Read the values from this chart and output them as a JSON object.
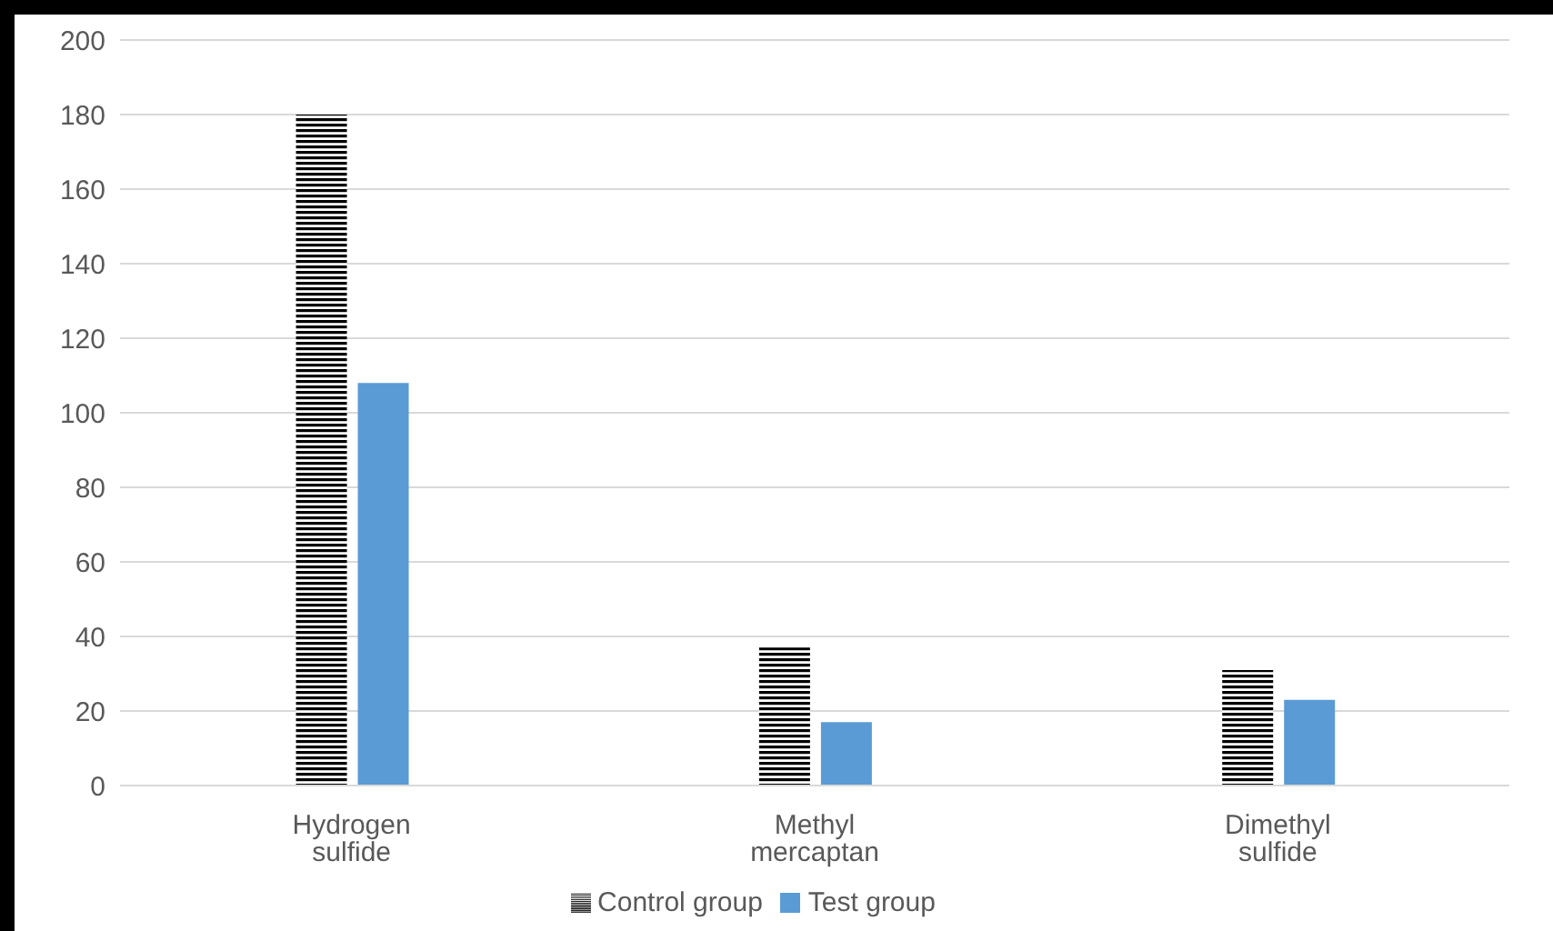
{
  "chart_data": {
    "type": "bar",
    "categories": [
      "Hydrogen sulfide",
      "Methyl mercaptan",
      "Dimethyl sulfide"
    ],
    "series": [
      {
        "name": "Control group",
        "color": "#000000",
        "values": [
          180,
          37,
          31
        ]
      },
      {
        "name": "Test group",
        "color": "#5b9bd5",
        "values": [
          108,
          17,
          23
        ]
      }
    ],
    "ylim": [
      0,
      200
    ],
    "yticks": [
      0,
      20,
      40,
      60,
      80,
      100,
      120,
      140,
      160,
      180,
      200
    ],
    "grid": "y",
    "legend": "bottom"
  }
}
